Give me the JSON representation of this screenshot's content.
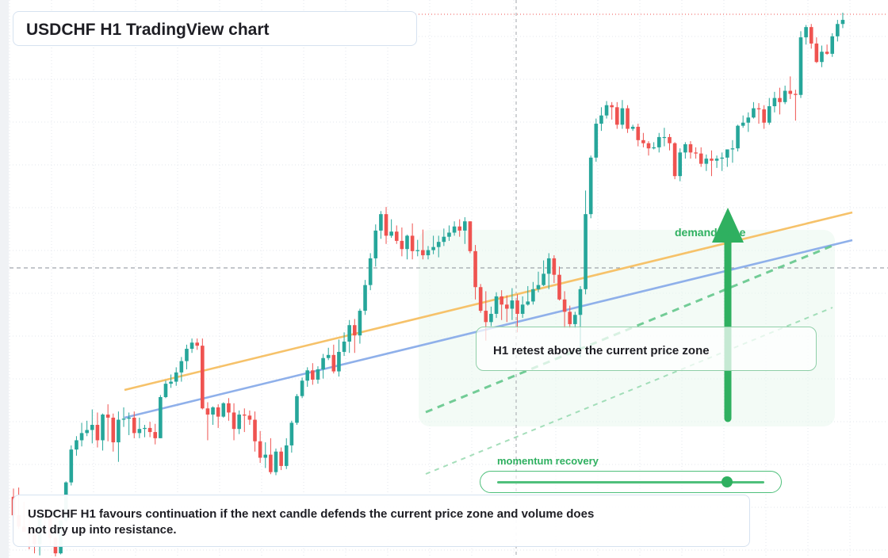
{
  "title": "USDCHF H1 TradingView chart",
  "retest_note": "H1 retest above the current price zone",
  "demand_label": "demand zone",
  "momentum_label": "momentum recovery",
  "momentum_level": 0.86,
  "summary": "USDCHF H1 favours continuation if the next candle defends the current price zone and volume does not dry up into resistance.",
  "colors": {
    "up": "#26a69a",
    "down": "#ef5350",
    "orange_line": "#f6c26a",
    "blue_line": "#8fb0ea",
    "signal_green": "#2fb060",
    "zone_fill": "#eaf7ee"
  },
  "chart_data": {
    "type": "candlestick",
    "timeframe": "H1",
    "symbol": "USDCHF",
    "grid": true,
    "y_axis_labels_visible": false,
    "x_axis_labels_visible": false,
    "ohlc": [
      [
        0.8,
        -1,
        1.6,
        -3.4
      ],
      [
        -1,
        -2.1,
        1.7,
        -2.3
      ],
      [
        -2.1,
        -2.6,
        0.3,
        -2.6
      ],
      [
        -2.6,
        -2.9,
        -0.8,
        -4.3
      ],
      [
        -2.9,
        -3.8,
        -2.6,
        -4.7
      ],
      [
        -3.8,
        -1.1,
        -1.1,
        -4.9
      ],
      [
        -1.1,
        -1.2,
        -0.3,
        -2.1
      ],
      [
        -1.2,
        -3.2,
        -1.1,
        -3.9
      ],
      [
        -3.2,
        -4.7,
        -3.0,
        -5.0
      ],
      [
        -4.7,
        -1.5,
        -1.5,
        -4.8
      ],
      [
        -1.5,
        2.2,
        2.3,
        -1.7
      ],
      [
        2.2,
        5.4,
        5.8,
        1.9
      ],
      [
        5.4,
        6.3,
        6.7,
        4.8
      ],
      [
        6.3,
        7.0,
        8.0,
        5.7
      ],
      [
        7.0,
        7.3,
        8.2,
        6.7
      ],
      [
        7.3,
        7.8,
        9.3,
        6.0
      ],
      [
        7.8,
        6.3,
        9.0,
        5.6
      ],
      [
        6.3,
        8.8,
        8.9,
        5.3
      ],
      [
        8.8,
        8.5,
        9.8,
        6.2
      ],
      [
        8.5,
        6.1,
        8.9,
        5.2
      ],
      [
        6.1,
        8.3,
        9.1,
        4.2
      ],
      [
        8.3,
        8.4,
        9.5,
        7.6
      ],
      [
        8.4,
        8.5,
        9.0,
        6.8
      ],
      [
        8.5,
        7.0,
        9.1,
        6.5
      ],
      [
        7.0,
        7.4,
        8.5,
        6.5
      ],
      [
        7.4,
        7.5,
        7.8,
        6.6
      ],
      [
        7.5,
        7.1,
        8.1,
        6.6
      ],
      [
        7.1,
        6.5,
        7.9,
        5.9
      ],
      [
        6.5,
        10.5,
        10.7,
        6.5
      ],
      [
        10.5,
        11.8,
        12.1,
        10.4
      ],
      [
        11.8,
        12.0,
        12.7,
        11.4
      ],
      [
        12.0,
        12.9,
        13.4,
        11.6
      ],
      [
        12.9,
        14.0,
        14.4,
        12.0
      ],
      [
        14.0,
        15.2,
        15.6,
        13.2
      ],
      [
        15.2,
        15.8,
        16.2,
        14.8
      ],
      [
        15.8,
        15.5,
        16.2,
        15.1
      ],
      [
        15.5,
        9.4,
        16.2,
        9.3
      ],
      [
        9.4,
        8.8,
        10.0,
        6.3
      ],
      [
        8.8,
        9.5,
        9.6,
        7.8
      ],
      [
        9.5,
        8.6,
        9.8,
        7.5
      ],
      [
        8.6,
        9.9,
        10.0,
        8.5
      ],
      [
        9.9,
        9.0,
        10.4,
        8.2
      ],
      [
        9.0,
        7.4,
        9.9,
        6.3
      ],
      [
        7.4,
        8.8,
        9.2,
        6.9
      ],
      [
        8.8,
        8.7,
        9.4,
        7.1
      ],
      [
        8.7,
        8.3,
        9.2,
        7.8
      ],
      [
        8.3,
        6.2,
        9.1,
        5.2
      ],
      [
        6.2,
        4.6,
        7.2,
        4.1
      ],
      [
        4.6,
        4.9,
        6.1,
        3.6
      ],
      [
        4.9,
        3.2,
        6.5,
        3.0
      ],
      [
        3.2,
        5.2,
        5.5,
        2.9
      ],
      [
        5.2,
        3.8,
        5.6,
        3.4
      ],
      [
        3.8,
        5.8,
        6.5,
        3.5
      ],
      [
        5.8,
        8.0,
        8.2,
        5.1
      ],
      [
        8.0,
        10.6,
        10.8,
        7.8
      ],
      [
        10.6,
        12.1,
        12.4,
        10.4
      ],
      [
        12.1,
        13.1,
        13.4,
        11.5
      ],
      [
        13.1,
        12.2,
        13.8,
        11.7
      ],
      [
        12.2,
        13.2,
        13.5,
        11.8
      ],
      [
        13.2,
        14.3,
        14.7,
        12.3
      ],
      [
        14.3,
        14.6,
        15.3,
        14.1
      ],
      [
        14.6,
        13.0,
        15.6,
        12.8
      ],
      [
        13.0,
        14.9,
        16.1,
        12.5
      ],
      [
        14.9,
        15.9,
        16.8,
        14.5
      ],
      [
        15.9,
        17.5,
        18.0,
        14.8
      ],
      [
        17.5,
        16.5,
        18.1,
        14.8
      ],
      [
        16.5,
        18.9,
        19.1,
        15.7
      ],
      [
        18.9,
        21.4,
        21.9,
        18.5
      ],
      [
        21.4,
        24.0,
        24.5,
        20.9
      ],
      [
        24.0,
        26.7,
        27.3,
        23.2
      ],
      [
        26.7,
        28.3,
        28.6,
        25.9
      ],
      [
        28.3,
        26.2,
        29.0,
        25.4
      ],
      [
        26.2,
        26.6,
        27.8,
        26.0
      ],
      [
        26.6,
        25.7,
        27.2,
        25.4
      ],
      [
        25.7,
        24.9,
        27.0,
        24.2
      ],
      [
        24.9,
        26.2,
        26.3,
        23.9
      ],
      [
        26.2,
        24.7,
        27.4,
        23.9
      ],
      [
        24.7,
        24.8,
        25.8,
        24.2
      ],
      [
        24.8,
        24.3,
        26.8,
        23.9
      ],
      [
        24.3,
        24.8,
        25.2,
        23.9
      ],
      [
        24.8,
        25.1,
        26.2,
        24.4
      ],
      [
        25.1,
        25.6,
        26.2,
        24.1
      ],
      [
        25.6,
        26.1,
        26.9,
        25.2
      ],
      [
        26.1,
        26.5,
        27.2,
        25.7
      ],
      [
        26.5,
        27.1,
        27.6,
        26.2
      ],
      [
        27.1,
        26.7,
        27.8,
        26.1
      ],
      [
        26.7,
        27.6,
        28.0,
        25.4
      ],
      [
        27.6,
        24.7,
        27.6,
        24.5
      ],
      [
        24.7,
        21.2,
        25.3,
        20.0
      ],
      [
        21.2,
        18.9,
        21.5,
        18.7
      ],
      [
        18.9,
        17.8,
        20.8,
        16.0
      ],
      [
        17.8,
        18.6,
        19.3,
        17.4
      ],
      [
        18.6,
        20.3,
        20.7,
        18.2
      ],
      [
        20.3,
        19.5,
        20.9,
        18.0
      ],
      [
        19.5,
        19.1,
        20.4,
        17.8
      ],
      [
        19.1,
        19.9,
        21.1,
        18.0
      ],
      [
        19.9,
        18.6,
        20.5,
        16.8
      ],
      [
        18.6,
        19.5,
        20.3,
        18.2
      ],
      [
        19.5,
        19.8,
        21.3,
        19.4
      ],
      [
        19.8,
        21.0,
        21.7,
        19.5
      ],
      [
        21.0,
        21.4,
        22.7,
        20.7
      ],
      [
        21.4,
        22.5,
        23.8,
        21.3
      ],
      [
        22.5,
        24.0,
        24.5,
        21.0
      ],
      [
        24.0,
        22.4,
        24.3,
        21.6
      ],
      [
        22.4,
        20.0,
        23.2,
        19.9
      ],
      [
        20.0,
        18.8,
        20.8,
        17.2
      ],
      [
        18.8,
        17.6,
        19.4,
        17.2
      ],
      [
        17.6,
        18.5,
        18.8,
        17.2
      ],
      [
        18.5,
        21.0,
        21.3,
        14.4
      ],
      [
        21.0,
        28.3,
        30.6,
        20.5
      ],
      [
        28.3,
        33.8,
        34.0,
        27.9
      ],
      [
        33.8,
        37.1,
        37.6,
        33.4
      ],
      [
        37.1,
        37.9,
        38.7,
        36.4
      ],
      [
        37.9,
        38.9,
        39.3,
        37.6
      ],
      [
        38.9,
        38.7,
        39.2,
        37.5
      ],
      [
        38.7,
        37.0,
        39.2,
        36.6
      ],
      [
        37.0,
        38.6,
        39.4,
        36.6
      ],
      [
        38.6,
        36.6,
        38.9,
        36.2
      ],
      [
        36.6,
        36.8,
        37.0,
        36.4
      ],
      [
        36.8,
        35.5,
        37.1,
        34.9
      ],
      [
        35.5,
        35.2,
        36.2,
        34.8
      ],
      [
        35.2,
        34.7,
        35.4,
        34.0
      ],
      [
        34.7,
        34.8,
        35.3,
        34.6
      ],
      [
        34.8,
        35.8,
        36.2,
        34.3
      ],
      [
        35.8,
        35.8,
        36.7,
        34.9
      ],
      [
        35.8,
        35.2,
        36.1,
        34.5
      ],
      [
        35.2,
        32.0,
        35.3,
        31.7
      ],
      [
        32.0,
        34.3,
        34.7,
        31.5
      ],
      [
        34.3,
        35.1,
        35.3,
        33.7
      ],
      [
        35.1,
        34.3,
        35.4,
        33.7
      ],
      [
        34.3,
        34.2,
        34.8,
        33.7
      ],
      [
        34.2,
        33.2,
        34.8,
        32.9
      ],
      [
        33.2,
        33.7,
        34.1,
        32.5
      ],
      [
        33.7,
        33.5,
        34.5,
        32.0
      ],
      [
        33.5,
        33.7,
        34.0,
        32.8
      ],
      [
        33.7,
        33.8,
        34.3,
        32.5
      ],
      [
        33.8,
        34.6,
        34.6,
        32.9
      ],
      [
        34.6,
        34.7,
        35.5,
        33.3
      ],
      [
        34.7,
        36.9,
        37.0,
        34.4
      ],
      [
        36.9,
        37.2,
        37.9,
        36.7
      ],
      [
        37.2,
        37.7,
        38.2,
        36.3
      ],
      [
        37.7,
        38.6,
        39.2,
        37.6
      ],
      [
        38.6,
        38.5,
        39.1,
        37.1
      ],
      [
        38.5,
        37.2,
        38.9,
        36.6
      ],
      [
        37.2,
        38.8,
        39.6,
        37.0
      ],
      [
        38.8,
        39.6,
        40.2,
        38.2
      ],
      [
        39.6,
        39.2,
        40.6,
        38.0
      ],
      [
        39.2,
        40.3,
        40.8,
        39.0
      ],
      [
        40.3,
        40.0,
        41.7,
        39.5
      ],
      [
        40.0,
        39.9,
        40.4,
        37.4
      ],
      [
        39.9,
        45.5,
        46.1,
        39.6
      ],
      [
        45.5,
        46.5,
        46.7,
        44.8
      ],
      [
        46.5,
        44.9,
        46.8,
        44.4
      ],
      [
        44.9,
        43.1,
        45.5,
        43.0
      ],
      [
        43.1,
        44.1,
        44.7,
        42.6
      ],
      [
        44.1,
        43.9,
        44.8,
        43.8
      ],
      [
        43.9,
        45.6,
        45.9,
        43.6
      ],
      [
        45.6,
        46.8,
        47.2,
        45.1
      ],
      [
        46.8,
        47.2,
        47.9,
        46.4
      ]
    ],
    "trendlines": [
      {
        "color": "orange",
        "from": [
          0,
          4.0
        ],
        "to": [
          160,
          33.9
        ]
      },
      {
        "color": "blue",
        "from": [
          0,
          -0.6
        ],
        "to": [
          160,
          29.0
        ]
      }
    ],
    "annotations": [
      "demand zone",
      "momentum recovery",
      "H1 retest above the current price zone"
    ]
  }
}
